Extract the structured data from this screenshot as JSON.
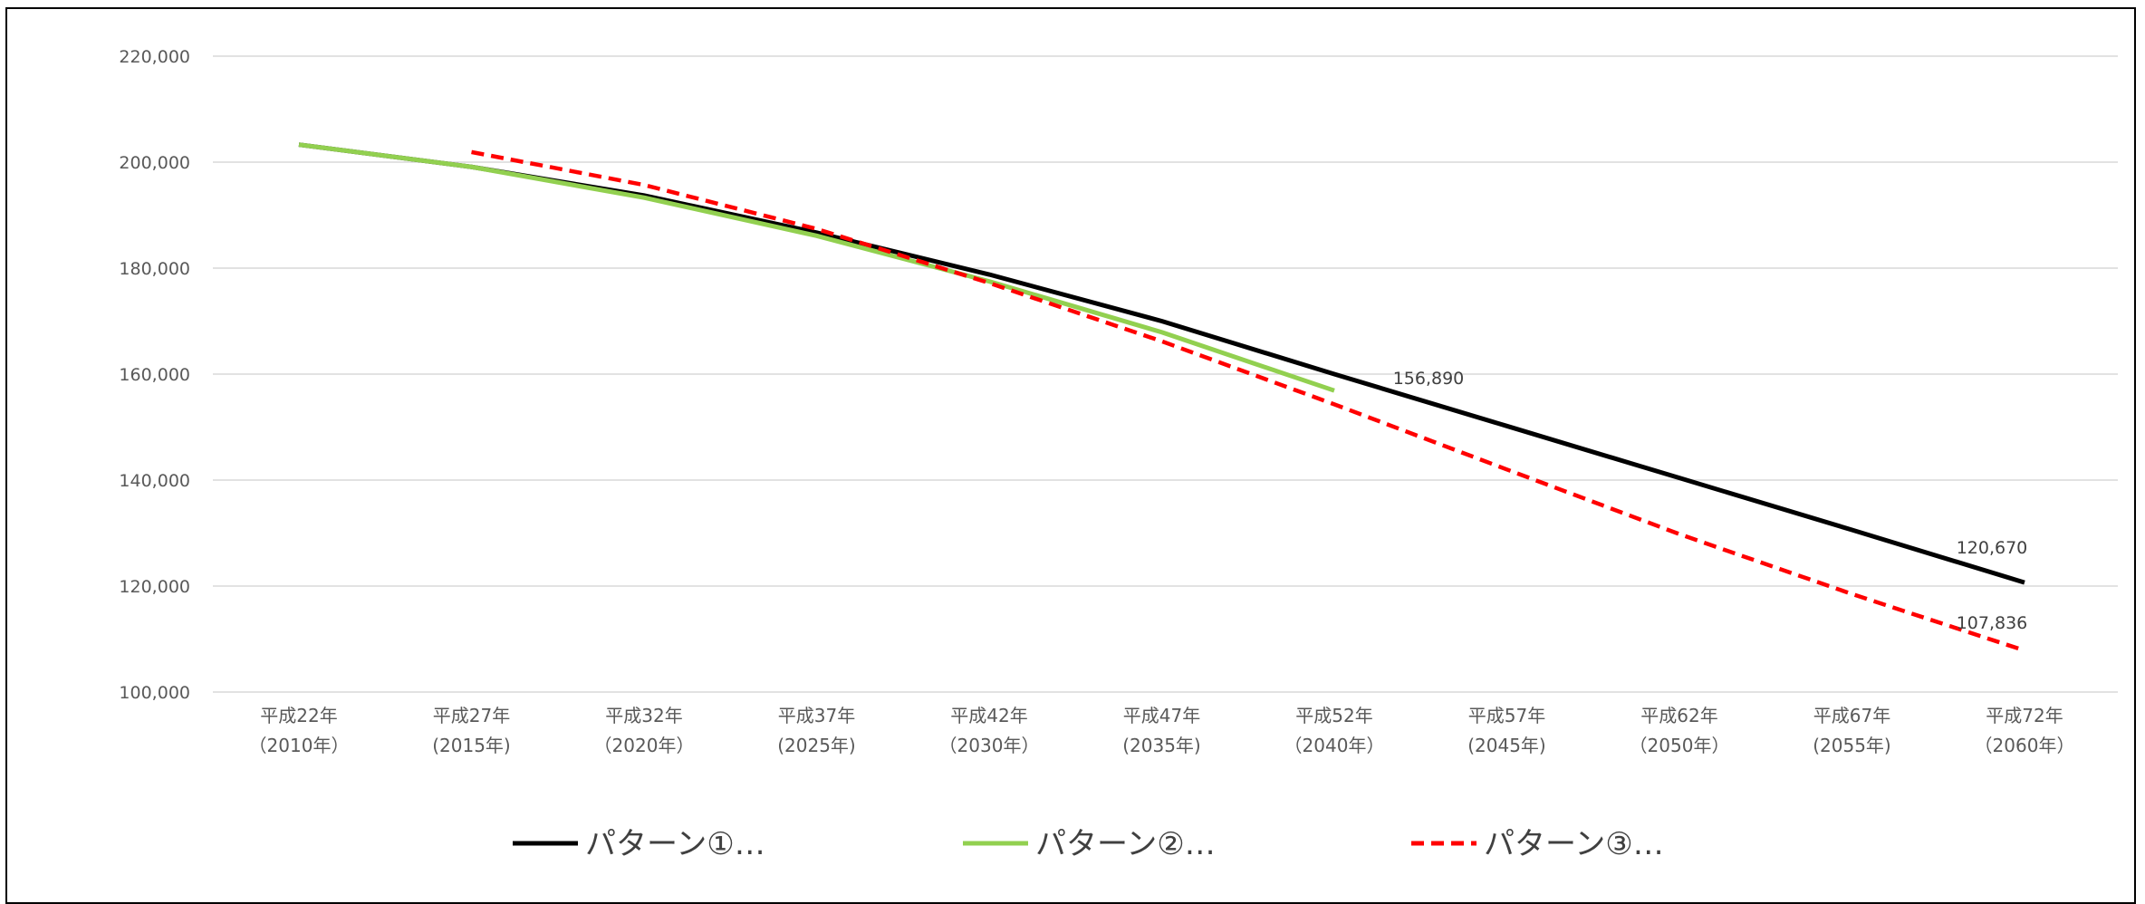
{
  "chart_data": {
    "type": "line",
    "categories": [
      [
        "平成22年",
        "（2010年）"
      ],
      [
        "平成27年",
        "(2015年)"
      ],
      [
        "平成32年",
        "（2020年）"
      ],
      [
        "平成37年",
        "(2025年)"
      ],
      [
        "平成42年",
        "（2030年）"
      ],
      [
        "平成47年",
        "(2035年)"
      ],
      [
        "平成52年",
        "（2040年）"
      ],
      [
        "平成57年",
        "(2045年)"
      ],
      [
        "平成62年",
        "（2050年）"
      ],
      [
        "平成67年",
        "(2055年)"
      ],
      [
        "平成72年",
        "（2060年）"
      ]
    ],
    "ylim": [
      100000,
      220000
    ],
    "yticks": [
      100000,
      120000,
      140000,
      160000,
      180000,
      200000,
      220000
    ],
    "ytick_labels": [
      "100,000",
      "120,000",
      "140,000",
      "160,000",
      "180,000",
      "200,000",
      "220,000"
    ],
    "grid": true,
    "legend": "bottom",
    "series": [
      {
        "name": "パターン①…",
        "color": "#000000",
        "style": "solid",
        "values": [
          203300,
          199100,
          193700,
          186700,
          178800,
          170000,
          160000,
          150200,
          140400,
          130600,
          120670
        ]
      },
      {
        "name": "パターン②…",
        "color": "#92d050",
        "style": "solid",
        "values": [
          203300,
          199100,
          193300,
          186100,
          177500,
          167900,
          156890,
          null,
          null,
          null,
          null
        ]
      },
      {
        "name": "パターン③…",
        "color": "#ff0000",
        "style": "dashed",
        "values": [
          null,
          201900,
          195700,
          187400,
          177200,
          166200,
          154300,
          142000,
          129800,
          118500,
          107836
        ]
      }
    ],
    "data_labels": [
      {
        "series": 1,
        "index": 6,
        "text": "156,890"
      },
      {
        "series": 0,
        "index": 10,
        "text": "120,670"
      },
      {
        "series": 2,
        "index": 10,
        "text": "107,836"
      }
    ]
  }
}
